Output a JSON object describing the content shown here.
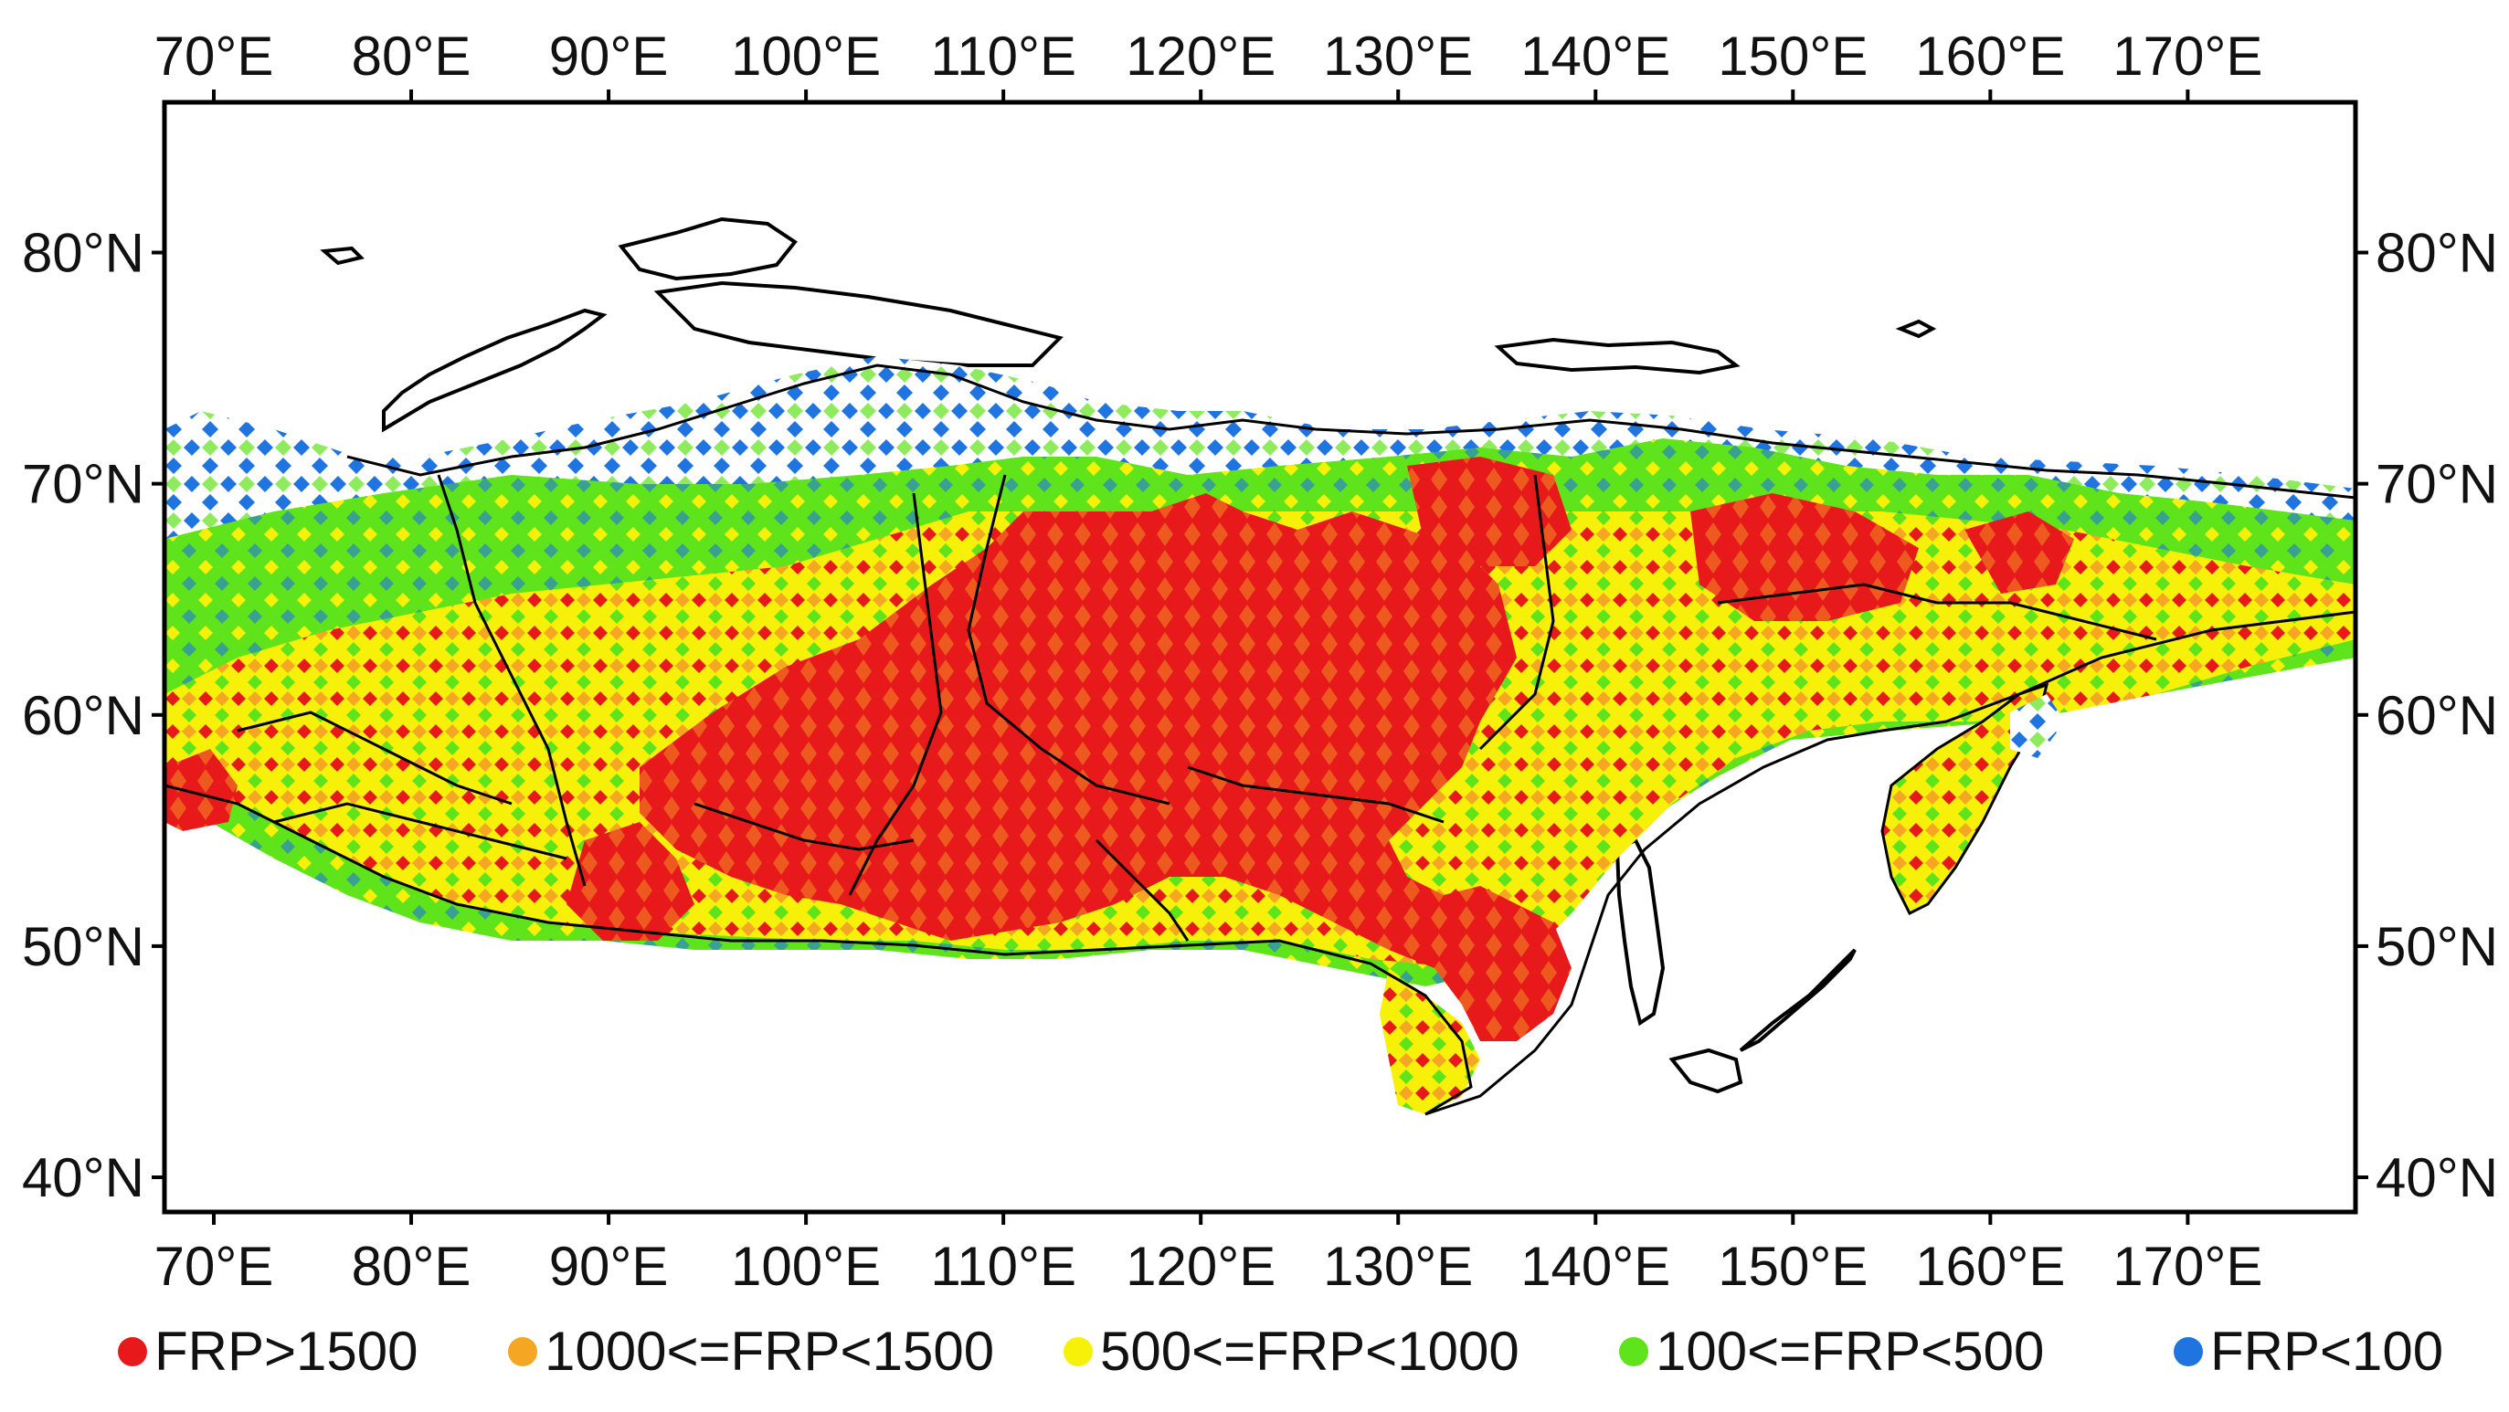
{
  "map": {
    "lon_range": [
      67.5,
      178.5
    ],
    "lat_range": [
      38.5,
      86.5
    ],
    "gridlines": false,
    "legend_placement": "bottom",
    "top_lon_ticks": [
      {
        "lon": 70,
        "label": "70°E"
      },
      {
        "lon": 80,
        "label": "80°E"
      },
      {
        "lon": 90,
        "label": "90°E"
      },
      {
        "lon": 100,
        "label": "100°E"
      },
      {
        "lon": 110,
        "label": "110°E"
      },
      {
        "lon": 120,
        "label": "120°E"
      },
      {
        "lon": 130,
        "label": "130°E"
      },
      {
        "lon": 140,
        "label": "140°E"
      },
      {
        "lon": 150,
        "label": "150°E"
      },
      {
        "lon": 160,
        "label": "160°E"
      },
      {
        "lon": 170,
        "label": "170°E"
      }
    ],
    "bottom_lon_ticks": [
      {
        "lon": 70,
        "label": "70°E"
      },
      {
        "lon": 80,
        "label": "80°E"
      },
      {
        "lon": 90,
        "label": "90°E"
      },
      {
        "lon": 100,
        "label": "100°E"
      },
      {
        "lon": 110,
        "label": "110°E"
      },
      {
        "lon": 120,
        "label": "120°E"
      },
      {
        "lon": 130,
        "label": "130°E"
      },
      {
        "lon": 140,
        "label": "140°E"
      },
      {
        "lon": 150,
        "label": "150°E"
      },
      {
        "lon": 160,
        "label": "160°E"
      },
      {
        "lon": 170,
        "label": "170°E"
      }
    ],
    "left_lat_ticks": [
      {
        "lat": 80,
        "label": "80°N"
      },
      {
        "lat": 70,
        "label": "70°N"
      },
      {
        "lat": 60,
        "label": "60°N"
      },
      {
        "lat": 50,
        "label": "50°N"
      },
      {
        "lat": 40,
        "label": "40°N"
      }
    ],
    "right_lat_ticks": [
      {
        "lat": 80,
        "label": "80°N"
      },
      {
        "lat": 70,
        "label": "70°N"
      },
      {
        "lat": 60,
        "label": "60°N"
      },
      {
        "lat": 50,
        "label": "50°N"
      },
      {
        "lat": 40,
        "label": "40°N"
      }
    ],
    "legend": [
      {
        "label": "FRP>1500",
        "color": "#e8191b"
      },
      {
        "label": "1000<=FRP<1500",
        "color": "#f5a623"
      },
      {
        "label": "500<=FRP<1000",
        "color": "#f7f10a"
      },
      {
        "label": "100<=FRP<500",
        "color": "#5fe31a"
      },
      {
        "label": "FRP<100",
        "color": "#1f74e0"
      }
    ],
    "land_color": "#ffffff",
    "outline_color": "#000000"
  }
}
